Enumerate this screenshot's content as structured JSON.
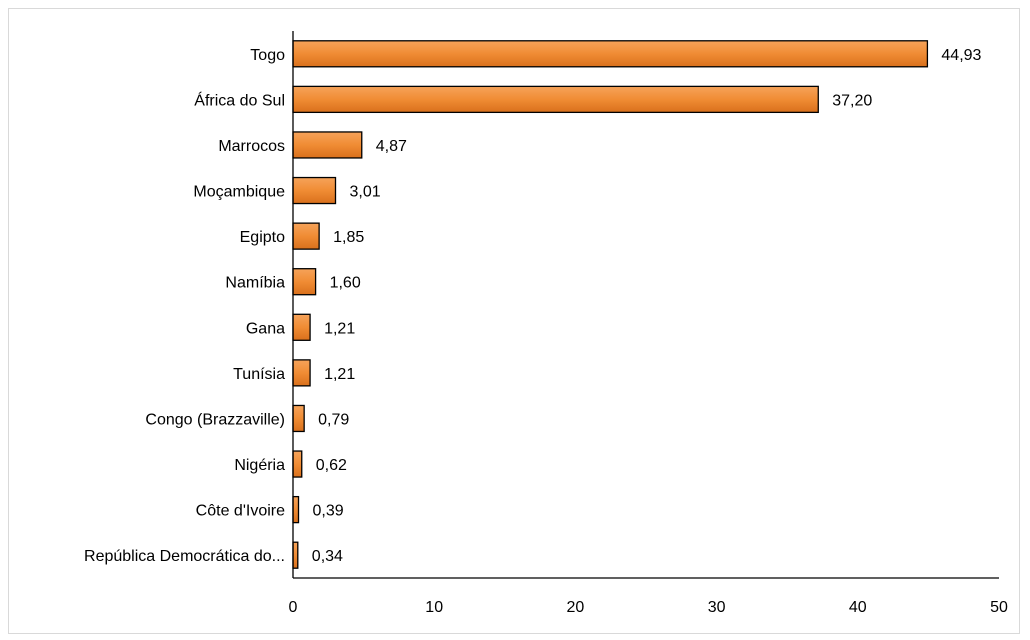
{
  "chart_data": {
    "type": "bar",
    "orientation": "horizontal",
    "categories": [
      "Togo",
      "África do Sul",
      "Marrocos",
      "Moçambique",
      "Egipto",
      "Namíbia",
      "Gana",
      "Tunísia",
      "Congo (Brazzaville)",
      "Nigéria",
      "Côte d'Ivoire",
      "República Democrática do..."
    ],
    "values": [
      44.93,
      37.2,
      4.87,
      3.01,
      1.85,
      1.6,
      1.21,
      1.21,
      0.79,
      0.62,
      0.39,
      0.34
    ],
    "data_labels": [
      "44,93",
      "37,20",
      "4,87",
      "3,01",
      "1,85",
      "1,60",
      "1,21",
      "1,21",
      "0,79",
      "0,62",
      "0,39",
      "0,34"
    ],
    "x_ticks": [
      "0",
      "10",
      "20",
      "30",
      "40",
      "50"
    ],
    "xlim": [
      0,
      50
    ],
    "title": "",
    "xlabel": "",
    "ylabel": "",
    "grid": false,
    "legend": "none",
    "bar_color": "#F08C34",
    "bar_edge_color": "#000000"
  }
}
